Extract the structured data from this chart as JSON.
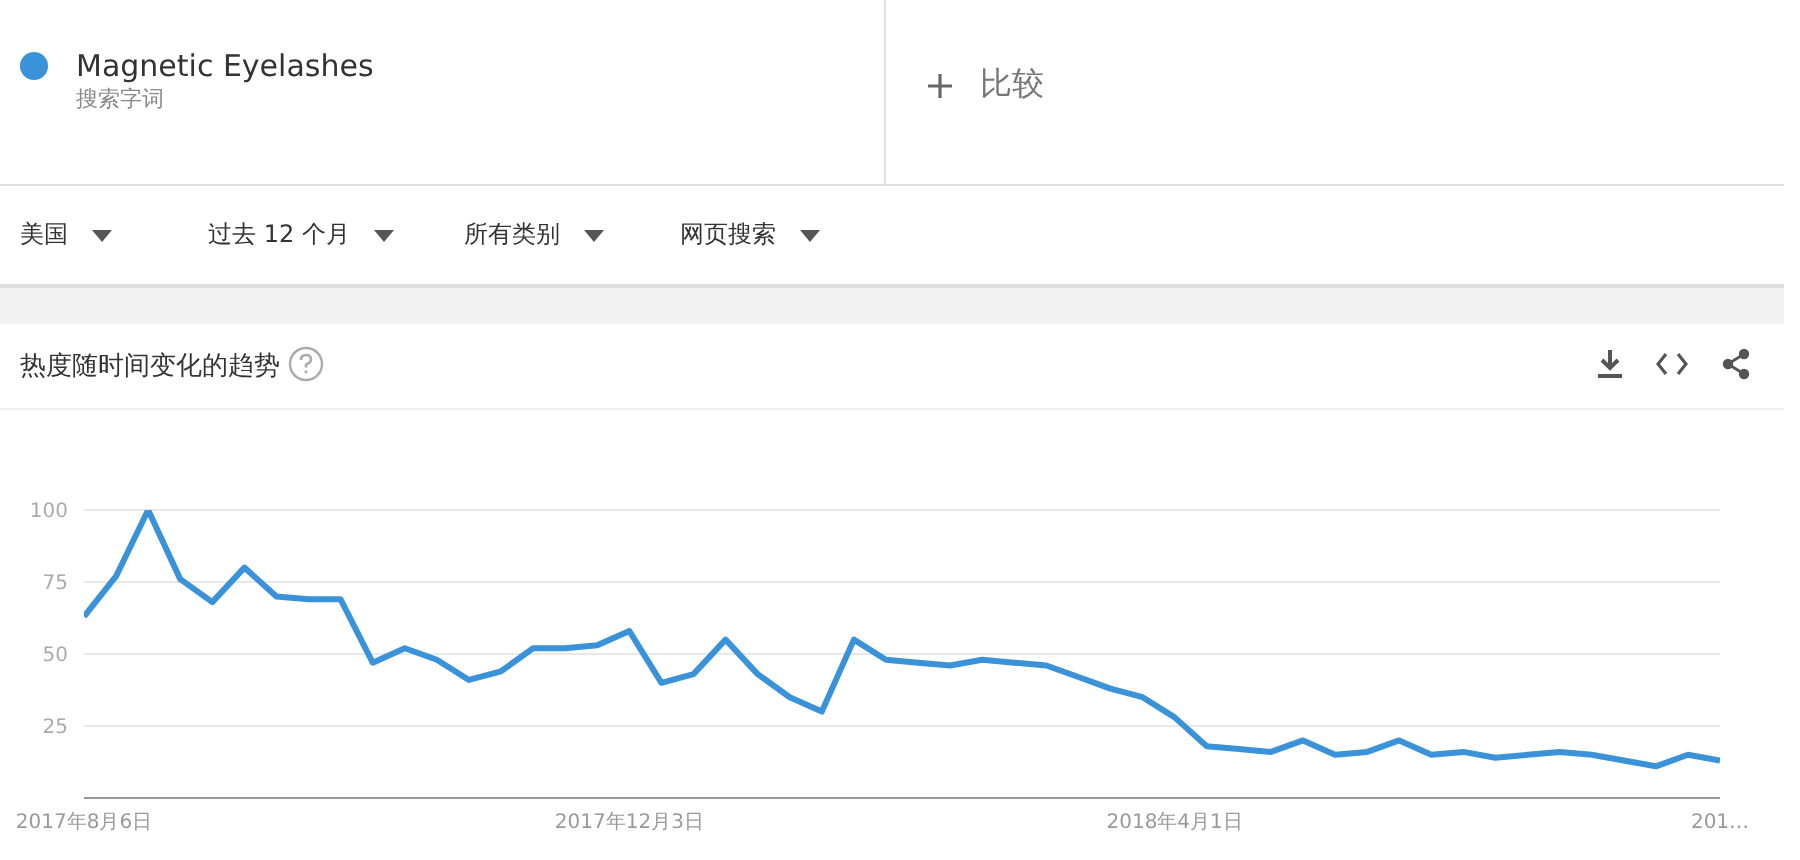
{
  "chart_data": {
    "type": "line",
    "title": "热度随时间变化的趋势",
    "annotations": [
      "搜索字词",
      "比较",
      "美国",
      "过去 12 个月",
      "所有类别",
      "网页搜索"
    ],
    "x": [
      "2017-08-06",
      "2017-08-13",
      "2017-08-20",
      "2017-08-27",
      "2017-09-03",
      "2017-09-10",
      "2017-09-17",
      "2017-09-24",
      "2017-10-01",
      "2017-10-08",
      "2017-10-15",
      "2017-10-22",
      "2017-10-29",
      "2017-11-05",
      "2017-11-12",
      "2017-11-19",
      "2017-11-26",
      "2017-12-03",
      "2017-12-10",
      "2017-12-17",
      "2017-12-24",
      "2017-12-31",
      "2018-01-07",
      "2018-01-14",
      "2018-01-21",
      "2018-01-28",
      "2018-02-04",
      "2018-02-11",
      "2018-02-18",
      "2018-02-25",
      "2018-03-04",
      "2018-03-11",
      "2018-03-18",
      "2018-03-25",
      "2018-04-01",
      "2018-04-08",
      "2018-04-15",
      "2018-04-22",
      "2018-04-29",
      "2018-05-06",
      "2018-05-13",
      "2018-05-20",
      "2018-05-27",
      "2018-06-03",
      "2018-06-10",
      "2018-06-17",
      "2018-06-24",
      "2018-07-01",
      "2018-07-08",
      "2018-07-15",
      "2018-07-22",
      "2018-07-29"
    ],
    "series": [
      {
        "name": "Magnetic Eyelashes",
        "color": "#3a93d9",
        "values": [
          63,
          77,
          100,
          76,
          68,
          80,
          70,
          69,
          69,
          47,
          52,
          48,
          41,
          44,
          52,
          52,
          53,
          58,
          40,
          43,
          55,
          43,
          35,
          30,
          55,
          48,
          47,
          46,
          48,
          47,
          46,
          42,
          38,
          35,
          28,
          18,
          17,
          16,
          20,
          15,
          16,
          20,
          15,
          16,
          14,
          15,
          16,
          15,
          13,
          11,
          15,
          13
        ]
      }
    ],
    "xlim": [
      "2017-08-06",
      "2018-07-29"
    ],
    "xticks": [
      {
        "value": "2017-08-06",
        "label": "2017年8月6日"
      },
      {
        "value": "2017-12-03",
        "label": "2017年12月3日"
      },
      {
        "value": "2018-04-01",
        "label": "2018年4月1日"
      },
      {
        "value": "2018-07-29",
        "label": "201…"
      }
    ],
    "ylim": [
      0,
      100
    ],
    "yticks": [
      25,
      50,
      75,
      100
    ],
    "grid": "y",
    "legend": "top left",
    "marker": "none",
    "line_style": "solid"
  }
}
